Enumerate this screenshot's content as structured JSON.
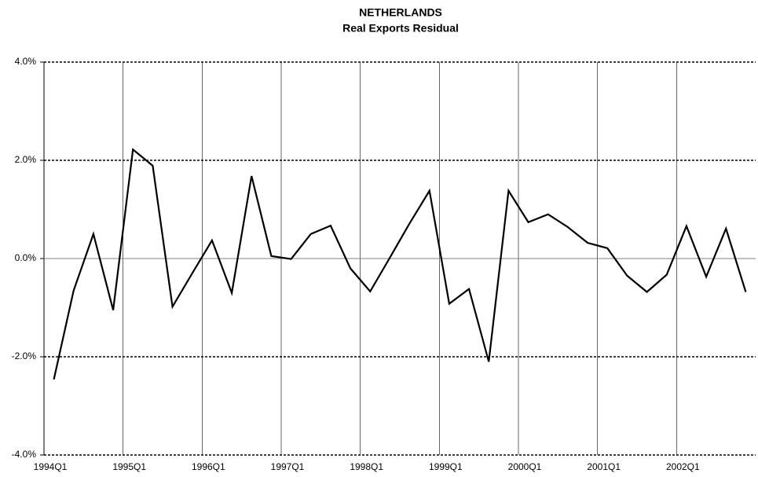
{
  "chart_data": {
    "type": "line",
    "title": "NETHERLANDS",
    "subtitle": "Real Exports Residual",
    "categories": [
      "1994Q1",
      null,
      null,
      null,
      "1995Q1",
      null,
      null,
      null,
      "1996Q1",
      null,
      null,
      null,
      "1997Q1",
      null,
      null,
      null,
      "1998Q1",
      null,
      null,
      null,
      "1999Q1",
      null,
      null,
      null,
      "2000Q1",
      null,
      null,
      null,
      "2001Q1",
      null,
      null,
      null,
      "2002Q1",
      null,
      null,
      null
    ],
    "series": [
      {
        "name": "Real Exports Residual",
        "color": "#000000",
        "values": [
          -2.46,
          -0.65,
          0.5,
          -1.05,
          2.22,
          1.89,
          -0.98,
          -0.3,
          0.37,
          -0.7,
          1.68,
          0.05,
          -0.01,
          0.5,
          0.67,
          -0.2,
          -0.67,
          0.02,
          0.72,
          1.38,
          -0.92,
          -0.62,
          -2.1,
          1.38,
          0.74,
          0.9,
          0.64,
          0.32,
          0.21,
          -0.35,
          -0.68,
          -0.33,
          0.66,
          -0.37,
          0.61,
          -0.68
        ]
      }
    ],
    "ylim": [
      -4,
      4
    ],
    "yticks": [
      {
        "value": -4,
        "label": "-4.0%"
      },
      {
        "value": -2,
        "label": "-2.0%"
      },
      {
        "value": 0,
        "label": "0.0%"
      },
      {
        "value": 2,
        "label": "2.0%"
      },
      {
        "value": 4,
        "label": "4.0%"
      }
    ],
    "grid": true
  }
}
